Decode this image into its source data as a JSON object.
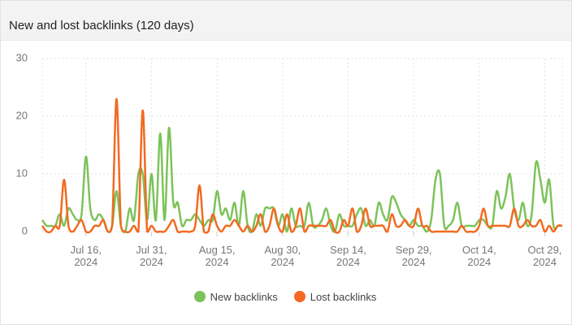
{
  "header": {
    "title": "New and lost backlinks (120 days)"
  },
  "chart_data": {
    "type": "line",
    "x": [
      "2024-07-06",
      "2024-07-07",
      "2024-07-08",
      "2024-07-09",
      "2024-07-10",
      "2024-07-11",
      "2024-07-12",
      "2024-07-13",
      "2024-07-14",
      "2024-07-15",
      "2024-07-16",
      "2024-07-17",
      "2024-07-18",
      "2024-07-19",
      "2024-07-20",
      "2024-07-21",
      "2024-07-22",
      "2024-07-23",
      "2024-07-24",
      "2024-07-25",
      "2024-07-26",
      "2024-07-27",
      "2024-07-28",
      "2024-07-29",
      "2024-07-30",
      "2024-07-31",
      "2024-08-01",
      "2024-08-02",
      "2024-08-03",
      "2024-08-04",
      "2024-08-05",
      "2024-08-06",
      "2024-08-07",
      "2024-08-08",
      "2024-08-09",
      "2024-08-10",
      "2024-08-11",
      "2024-08-12",
      "2024-08-13",
      "2024-08-14",
      "2024-08-15",
      "2024-08-16",
      "2024-08-17",
      "2024-08-18",
      "2024-08-19",
      "2024-08-20",
      "2024-08-21",
      "2024-08-22",
      "2024-08-23",
      "2024-08-24",
      "2024-08-25",
      "2024-08-26",
      "2024-08-27",
      "2024-08-28",
      "2024-08-29",
      "2024-08-30",
      "2024-08-31",
      "2024-09-01",
      "2024-09-02",
      "2024-09-03",
      "2024-09-04",
      "2024-09-05",
      "2024-09-06",
      "2024-09-07",
      "2024-09-08",
      "2024-09-09",
      "2024-09-10",
      "2024-09-11",
      "2024-09-12",
      "2024-09-13",
      "2024-09-14",
      "2024-09-15",
      "2024-09-16",
      "2024-09-17",
      "2024-09-18",
      "2024-09-19",
      "2024-09-20",
      "2024-09-21",
      "2024-09-22",
      "2024-09-23",
      "2024-09-24",
      "2024-09-25",
      "2024-09-26",
      "2024-09-27",
      "2024-09-28",
      "2024-09-29",
      "2024-09-30",
      "2024-10-01",
      "2024-10-02",
      "2024-10-03",
      "2024-10-04",
      "2024-10-05",
      "2024-10-06",
      "2024-10-07",
      "2024-10-08",
      "2024-10-09",
      "2024-10-10",
      "2024-10-11",
      "2024-10-12",
      "2024-10-13",
      "2024-10-14",
      "2024-10-15",
      "2024-10-16",
      "2024-10-17",
      "2024-10-18",
      "2024-10-19",
      "2024-10-20",
      "2024-10-21",
      "2024-10-22",
      "2024-10-23",
      "2024-10-24",
      "2024-10-25",
      "2024-10-26",
      "2024-10-27",
      "2024-10-28",
      "2024-10-29",
      "2024-10-30",
      "2024-10-31",
      "2024-11-01",
      "2024-11-02"
    ],
    "series": [
      {
        "name": "New backlinks",
        "color": "#7cc35a",
        "values": [
          2,
          1,
          1,
          1,
          3,
          1,
          4,
          3,
          2,
          3,
          13,
          4,
          2,
          3,
          2,
          0,
          1,
          7,
          1,
          0,
          4,
          2,
          10,
          10,
          2,
          10,
          2,
          17,
          2,
          18,
          5,
          5,
          1,
          2,
          2,
          3,
          2,
          1,
          2,
          2,
          7,
          3,
          4,
          2,
          5,
          1,
          7,
          1,
          0,
          3,
          1,
          4,
          4,
          4,
          1,
          3,
          0,
          4,
          1,
          1,
          1,
          5,
          1,
          1,
          2,
          4,
          1,
          0,
          3,
          1,
          1,
          1,
          3,
          4,
          1,
          2,
          1,
          5,
          3,
          2,
          6,
          5,
          3,
          2,
          1,
          2,
          1,
          1,
          0,
          2,
          9,
          10,
          1,
          1,
          2,
          5,
          1,
          1,
          1,
          1,
          2,
          2,
          1,
          1,
          7,
          4,
          6,
          10,
          4,
          2,
          5,
          1,
          3,
          12,
          9,
          5,
          9,
          1,
          1,
          1
        ]
      },
      {
        "name": "Lost backlinks",
        "color": "#f26a21",
        "values": [
          1,
          0,
          0,
          1,
          1,
          9,
          1,
          0,
          1,
          2,
          0,
          0,
          1,
          1,
          2,
          0,
          1,
          23,
          1,
          0,
          0,
          1,
          0,
          21,
          0,
          1,
          0,
          0,
          0,
          1,
          2,
          0,
          0,
          0,
          0,
          1,
          8,
          0,
          0,
          3,
          1,
          0,
          1,
          1,
          2,
          1,
          0,
          1,
          0,
          1,
          3,
          0,
          1,
          4,
          1,
          0,
          3,
          0,
          1,
          4,
          0,
          1,
          1,
          1,
          1,
          1,
          2,
          0,
          0,
          2,
          1,
          4,
          0,
          1,
          4,
          1,
          1,
          1,
          1,
          0,
          3,
          1,
          1,
          2,
          1,
          1,
          4,
          1,
          1,
          0,
          0,
          0,
          0,
          0,
          0,
          0,
          1,
          0,
          0,
          0,
          1,
          4,
          1,
          1,
          1,
          1,
          1,
          1,
          4,
          1,
          1,
          2,
          1,
          1,
          2,
          0,
          1,
          0,
          1,
          1
        ]
      }
    ],
    "ylim": [
      0,
      30
    ],
    "yticks": [
      0,
      10,
      20,
      30
    ],
    "xticks": [
      {
        "value": "2024-07-16",
        "label": "Jul 16, 2024"
      },
      {
        "value": "2024-07-31",
        "label": "Jul 31, 2024"
      },
      {
        "value": "2024-08-15",
        "label": "Aug 15, 2024"
      },
      {
        "value": "2024-08-30",
        "label": "Aug 30, 2024"
      },
      {
        "value": "2024-09-14",
        "label": "Sep 14, 2024"
      },
      {
        "value": "2024-09-29",
        "label": "Sep 29, 2024"
      },
      {
        "value": "2024-10-14",
        "label": "Oct 14, 2024"
      },
      {
        "value": "2024-10-29",
        "label": "Oct 29, 2024"
      }
    ],
    "grid": true,
    "legend": "bottom"
  }
}
